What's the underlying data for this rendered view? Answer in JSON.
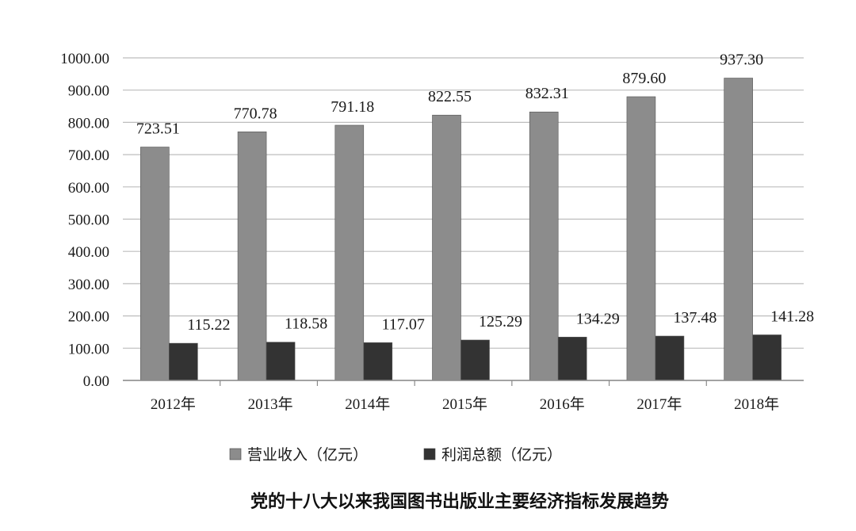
{
  "chart_data": {
    "type": "bar",
    "title": "党的十八大以来我国图书出版业主要经济指标发展趋势",
    "categories": [
      "2012年",
      "2013年",
      "2014年",
      "2015年",
      "2016年",
      "2017年",
      "2018年"
    ],
    "series": [
      {
        "name": "营业收入（亿元）",
        "color": "#8c8c8c",
        "values": [
          723.51,
          770.78,
          791.18,
          822.55,
          832.31,
          879.6,
          937.3
        ],
        "labels": [
          "723.51",
          "770.78",
          "791.18",
          "822.55",
          "832.31",
          "879.60",
          "937.30"
        ]
      },
      {
        "name": "利润总额（亿元）",
        "color": "#333333",
        "values": [
          115.22,
          118.58,
          117.07,
          125.29,
          134.29,
          137.48,
          141.28
        ],
        "labels": [
          "115.22",
          "118.58",
          "117.07",
          "125.29",
          "134.29",
          "137.48",
          "141.28"
        ]
      }
    ],
    "ylim": [
      0,
      1000
    ],
    "yticks": [
      "0.00",
      "100.00",
      "200.00",
      "300.00",
      "400.00",
      "500.00",
      "600.00",
      "700.00",
      "800.00",
      "900.00",
      "1000.00"
    ],
    "grid": true,
    "legend_position": "bottom"
  }
}
